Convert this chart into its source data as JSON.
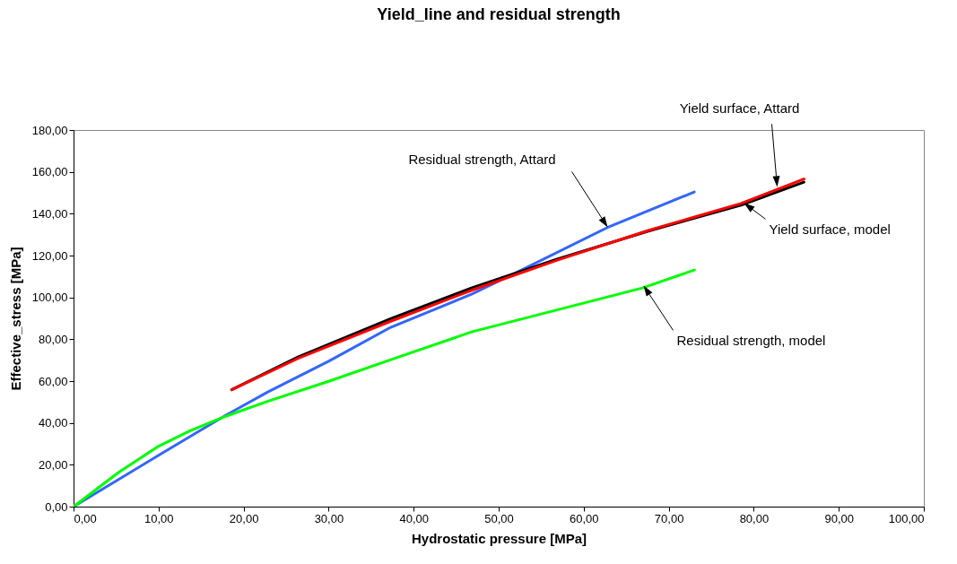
{
  "chart_data": {
    "type": "line",
    "title": "Yield_line and residual strength",
    "xlabel": "Hydrostatic pressure [MPa]",
    "ylabel": "Effective_stress [MPa]",
    "xlim": [
      0,
      100
    ],
    "ylim": [
      0,
      180
    ],
    "xticks": [
      {
        "value": 0,
        "label": "0,00"
      },
      {
        "value": 10,
        "label": "10,00"
      },
      {
        "value": 20,
        "label": "20,00"
      },
      {
        "value": 30,
        "label": "30,00"
      },
      {
        "value": 40,
        "label": "40,00"
      },
      {
        "value": 50,
        "label": "50,00"
      },
      {
        "value": 60,
        "label": "60,00"
      },
      {
        "value": 70,
        "label": "70,00"
      },
      {
        "value": 80,
        "label": "80,00"
      },
      {
        "value": 90,
        "label": "90,00"
      },
      {
        "value": 100,
        "label": "100,00"
      }
    ],
    "yticks": [
      {
        "value": 0,
        "label": "0,00"
      },
      {
        "value": 20,
        "label": "20,00"
      },
      {
        "value": 40,
        "label": "40,00"
      },
      {
        "value": 60,
        "label": "60,00"
      },
      {
        "value": 80,
        "label": "80,00"
      },
      {
        "value": 100,
        "label": "100,00"
      },
      {
        "value": 120,
        "label": "120,00"
      },
      {
        "value": 140,
        "label": "140,00"
      },
      {
        "value": 160,
        "label": "160,00"
      },
      {
        "value": 180,
        "label": "180,00"
      }
    ],
    "grid": false,
    "legend": false,
    "marker": "none",
    "line_style": "solid",
    "series": [
      {
        "color": "#3366ff",
        "x": [
          0,
          10,
          17.7,
          22.8,
          30,
          37.3,
          46.8,
          52.1,
          62.8,
          73
        ],
        "values": [
          0,
          24.5,
          43.2,
          54.7,
          69.5,
          85.7,
          101.5,
          111.9,
          133.4,
          150.4
        ]
      },
      {
        "color": "#00ff00",
        "x": [
          0,
          5.3,
          10,
          13.7,
          17.7,
          22.8,
          30,
          37.3,
          46.8,
          66.9,
          73
        ],
        "values": [
          0,
          16.4,
          28.9,
          36.3,
          42.9,
          50.3,
          59.9,
          70.2,
          83.5,
          104.5,
          113.1
        ]
      },
      {
        "color": "#000000",
        "x": [
          18.6,
          26.4,
          37.3,
          46.8,
          56.8,
          67.6,
          78.5,
          85.9
        ],
        "values": [
          55.9,
          71.5,
          89.8,
          104.5,
          118.2,
          131.7,
          144.1,
          155.1
        ]
      },
      {
        "color": "#ff0000",
        "x": [
          18.6,
          26.4,
          37.3,
          46.8,
          56.8,
          67.6,
          78.5,
          85.9
        ],
        "values": [
          55.9,
          70.9,
          88.6,
          103.4,
          117.7,
          132,
          144.9,
          156.6
        ]
      }
    ],
    "annotations": [
      "Residual strength, Attard",
      "Yield surface, Attard",
      "Yield surface, model",
      "Residual strength, model"
    ]
  }
}
